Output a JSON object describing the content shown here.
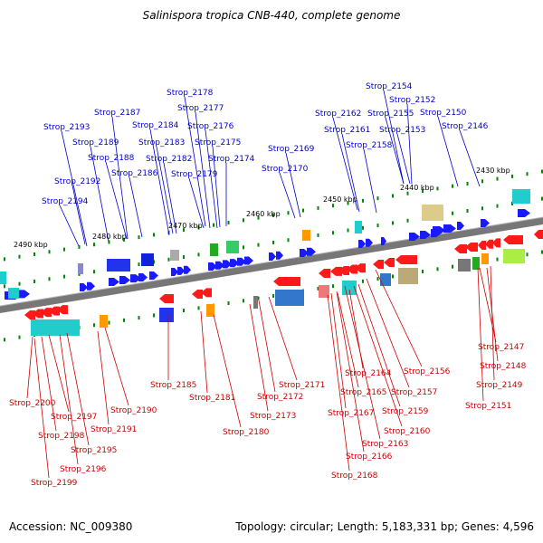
{
  "title": "Salinispora tropica CNB-440, complete genome",
  "accession": "Accession: NC_009380",
  "summary": "Topology: circular; Length: 5,183,331 bp; Genes: 4,596",
  "colors": {
    "forward_label": "#0000cc",
    "reverse_label": "#cc0000",
    "forward_gene": "#1a1aff",
    "reverse_gene": "#ff1a1a",
    "scale_text": "#000000",
    "tick": "#008800",
    "backbone": "#777777"
  },
  "scale_labels": [
    "2490 kbp",
    "2480 kbp",
    "2470 kbp",
    "2460 kbp",
    "2450 kbp",
    "2440 kbp",
    "2430 kbp"
  ],
  "forward_labels": [
    "Strop_2154",
    "Strop_2152",
    "Strop_2178",
    "Strop_2162",
    "Strop_2155",
    "Strop_2150",
    "Strop_2177",
    "Strop_2187",
    "Strop_2184",
    "Strop_2176",
    "Strop_2193",
    "Strop_2161",
    "Strop_2153",
    "Strop_2146",
    "Strop_2189",
    "Strop_2183",
    "Strop_2175",
    "Strop_2158",
    "Strop_2169",
    "Strop_2188",
    "Strop_2182",
    "Strop_2174",
    "Strop_2186",
    "Strop_2179",
    "Strop_2170",
    "Strop_2192",
    "Strop_2194"
  ],
  "reverse_labels": [
    "Strop_2147",
    "Strop_2148",
    "Strop_2156",
    "Strop_2164",
    "Strop_2171",
    "Strop_2185",
    "Strop_2149",
    "Strop_2165",
    "Strop_2157",
    "Strop_2181",
    "Strop_2172",
    "Strop_2200",
    "Strop_2190",
    "Strop_2151",
    "Strop_2167",
    "Strop_2159",
    "Strop_2197",
    "Strop_2173",
    "Strop_2191",
    "Strop_2198",
    "Strop_2160",
    "Strop_2180",
    "Strop_2195",
    "Strop_2163",
    "Strop_2166",
    "Strop_2196",
    "Strop_2168",
    "Strop_2199"
  ]
}
